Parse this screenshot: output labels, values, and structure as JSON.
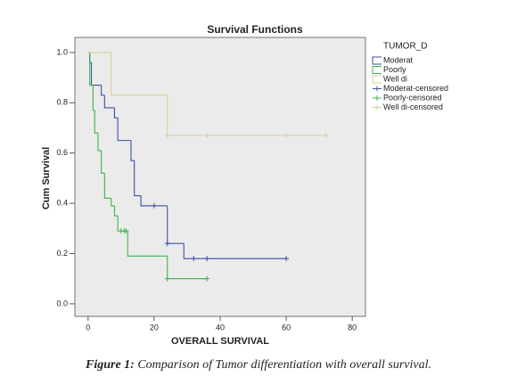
{
  "chart_data": {
    "type": "step",
    "title": "Survival Functions",
    "x_label": "OVERALL SURVIVAL",
    "y_label": "Cum Survival",
    "legend_title": "TUMOR_D",
    "xlim": [
      -4,
      84
    ],
    "ylim": [
      -0.05,
      1.06
    ],
    "xticks": [
      0,
      20,
      40,
      60,
      80
    ],
    "yticks": [
      {
        "value": 0,
        "label": "0.0"
      },
      0.2,
      0.4,
      0.6,
      0.8,
      {
        "value": 1,
        "label": "1.0"
      }
    ],
    "series": [
      {
        "name": "Moderat",
        "color": "#3a4fa8",
        "x": [
          0,
          0.5,
          1,
          4,
          5,
          8,
          9,
          13,
          14,
          16,
          24,
          29,
          60
        ],
        "values": [
          1,
          0.96,
          0.87,
          0.83,
          0.78,
          0.74,
          0.65,
          0.57,
          0.43,
          0.39,
          0.24,
          0.18,
          0.18
        ]
      },
      {
        "name": "Poorly",
        "color": "#3bb44a",
        "x": [
          0,
          0.5,
          1.5,
          2,
          3,
          4,
          5,
          7,
          8,
          9,
          12,
          24,
          36
        ],
        "values": [
          1,
          0.87,
          0.77,
          0.68,
          0.61,
          0.52,
          0.42,
          0.39,
          0.35,
          0.29,
          0.19,
          0.1,
          0.1
        ]
      },
      {
        "name": "Well di",
        "color": "#d6cf9e",
        "x": [
          0,
          7,
          24,
          72
        ],
        "values": [
          1,
          0.83,
          0.67,
          0.67
        ]
      },
      {
        "name": "Moderat-censored",
        "color": "#3a4fa8",
        "marker": "+",
        "x": [
          20,
          24,
          32,
          36,
          60
        ],
        "values": [
          0.39,
          0.24,
          0.18,
          0.18,
          0.18
        ]
      },
      {
        "name": "Poorly-censored",
        "color": "#3bb44a",
        "marker": "+",
        "x": [
          10,
          11,
          11.5,
          24,
          36
        ],
        "values": [
          0.29,
          0.29,
          0.29,
          0.1,
          0.1
        ]
      },
      {
        "name": "Well di-censored",
        "color": "#d6cf9e",
        "marker": "+",
        "x": [
          24,
          36,
          60,
          72
        ],
        "values": [
          0.67,
          0.67,
          0.67,
          0.67
        ]
      }
    ]
  },
  "caption": {
    "label": "Figure 1:",
    "text": "Comparison of Tumor differentiation with overall survival."
  }
}
